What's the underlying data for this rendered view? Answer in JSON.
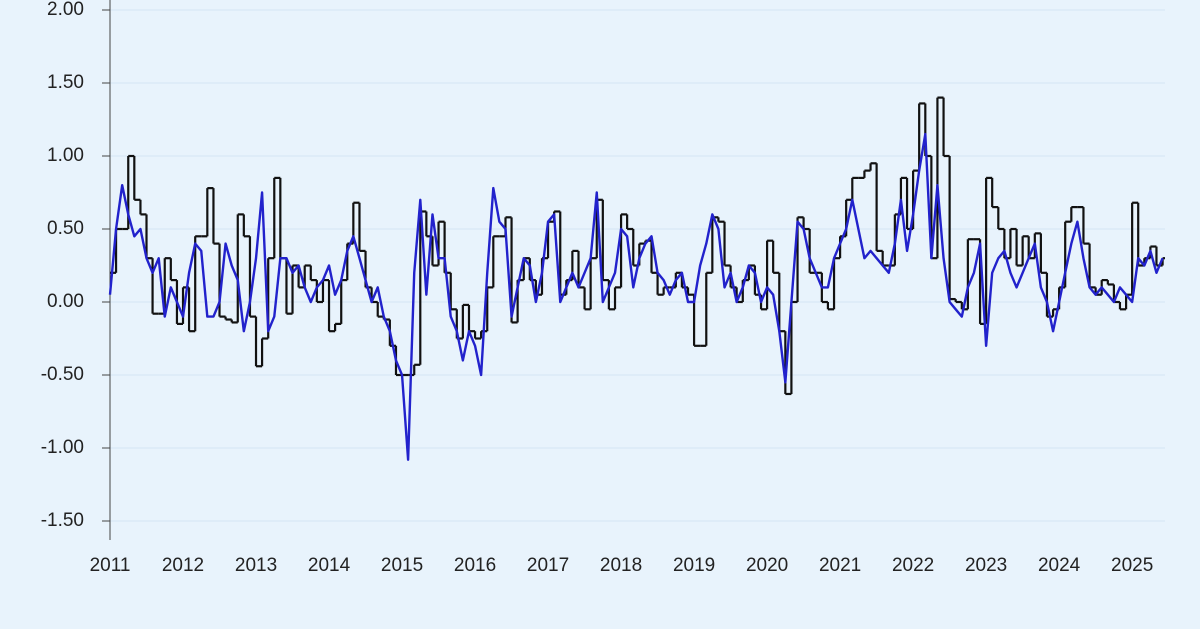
{
  "chart_data": {
    "type": "line",
    "x": [
      2011,
      2011.083,
      2011.167,
      2011.25,
      2011.333,
      2011.417,
      2011.5,
      2011.583,
      2011.667,
      2011.75,
      2011.833,
      2011.917,
      2012,
      2012.083,
      2012.167,
      2012.25,
      2012.333,
      2012.417,
      2012.5,
      2012.583,
      2012.667,
      2012.75,
      2012.833,
      2012.917,
      2013,
      2013.083,
      2013.167,
      2013.25,
      2013.333,
      2013.417,
      2013.5,
      2013.583,
      2013.667,
      2013.75,
      2013.833,
      2013.917,
      2014,
      2014.083,
      2014.167,
      2014.25,
      2014.333,
      2014.417,
      2014.5,
      2014.583,
      2014.667,
      2014.75,
      2014.833,
      2014.917,
      2015,
      2015.083,
      2015.167,
      2015.25,
      2015.333,
      2015.417,
      2015.5,
      2015.583,
      2015.667,
      2015.75,
      2015.833,
      2015.917,
      2016,
      2016.083,
      2016.167,
      2016.25,
      2016.333,
      2016.417,
      2016.5,
      2016.583,
      2016.667,
      2016.75,
      2016.833,
      2016.917,
      2017,
      2017.083,
      2017.167,
      2017.25,
      2017.333,
      2017.417,
      2017.5,
      2017.583,
      2017.667,
      2017.75,
      2017.833,
      2017.917,
      2018,
      2018.083,
      2018.167,
      2018.25,
      2018.333,
      2018.417,
      2018.5,
      2018.583,
      2018.667,
      2018.75,
      2018.833,
      2018.917,
      2019,
      2019.083,
      2019.167,
      2019.25,
      2019.333,
      2019.417,
      2019.5,
      2019.583,
      2019.667,
      2019.75,
      2019.833,
      2019.917,
      2020,
      2020.083,
      2020.167,
      2020.25,
      2020.333,
      2020.417,
      2020.5,
      2020.583,
      2020.667,
      2020.75,
      2020.833,
      2020.917,
      2021,
      2021.083,
      2021.167,
      2021.25,
      2021.333,
      2021.417,
      2021.5,
      2021.583,
      2021.667,
      2021.75,
      2021.833,
      2021.917,
      2022,
      2022.083,
      2022.167,
      2022.25,
      2022.333,
      2022.417,
      2022.5,
      2022.583,
      2022.667,
      2022.75,
      2022.833,
      2022.917,
      2023,
      2023.083,
      2023.167,
      2023.25,
      2023.333,
      2023.417,
      2023.5,
      2023.583,
      2023.667,
      2023.75,
      2023.833,
      2023.917,
      2024,
      2024.083,
      2024.167,
      2024.25,
      2024.333,
      2024.417,
      2024.5,
      2024.583,
      2024.667,
      2024.75,
      2024.833,
      2024.917,
      2025,
      2025.083,
      2025.167,
      2025.25,
      2025.333,
      2025.417
    ],
    "series": [
      {
        "color": "#111111",
        "step": true,
        "values": [
          0.2,
          0.5,
          0.5,
          1.0,
          0.7,
          0.6,
          0.3,
          -0.08,
          -0.08,
          0.3,
          0.15,
          -0.15,
          0.1,
          -0.2,
          0.45,
          0.45,
          0.78,
          0.4,
          -0.1,
          -0.12,
          -0.14,
          0.6,
          0.45,
          -0.1,
          -0.44,
          -0.25,
          0.3,
          0.85,
          0.3,
          -0.08,
          0.25,
          0.1,
          0.25,
          0.15,
          0.0,
          0.15,
          -0.2,
          -0.15,
          0.15,
          0.4,
          0.68,
          0.35,
          0.1,
          0.0,
          -0.1,
          -0.12,
          -0.3,
          -0.5,
          -0.5,
          -0.5,
          -0.43,
          0.62,
          0.45,
          0.25,
          0.55,
          0.2,
          -0.05,
          -0.25,
          -0.02,
          -0.2,
          -0.25,
          -0.2,
          0.1,
          0.45,
          0.45,
          0.58,
          -0.14,
          0.15,
          0.3,
          0.15,
          0.05,
          0.3,
          0.55,
          0.62,
          0.05,
          0.15,
          0.35,
          0.1,
          -0.05,
          0.3,
          0.7,
          0.15,
          -0.05,
          0.1,
          0.6,
          0.5,
          0.25,
          0.4,
          0.42,
          0.2,
          0.05,
          0.1,
          0.1,
          0.2,
          0.1,
          0.05,
          -0.3,
          -0.3,
          0.2,
          0.58,
          0.55,
          0.25,
          0.1,
          0.0,
          0.15,
          0.25,
          0.05,
          -0.05,
          0.42,
          0.2,
          -0.2,
          -0.63,
          0.0,
          0.58,
          0.5,
          0.2,
          0.2,
          0.0,
          -0.05,
          0.3,
          0.45,
          0.7,
          0.85,
          0.85,
          0.9,
          0.95,
          0.35,
          0.25,
          0.25,
          0.6,
          0.85,
          0.5,
          0.9,
          1.36,
          1.0,
          0.3,
          1.4,
          1.0,
          0.02,
          0.0,
          -0.05,
          0.43,
          0.43,
          -0.15,
          0.85,
          0.65,
          0.5,
          0.3,
          0.5,
          0.25,
          0.45,
          0.3,
          0.47,
          0.2,
          -0.1,
          -0.05,
          0.1,
          0.55,
          0.65,
          0.65,
          0.4,
          0.1,
          0.05,
          0.15,
          0.12,
          0.0,
          -0.05,
          0.05,
          0.68,
          0.25,
          0.3,
          0.38,
          0.25,
          0.3
        ]
      },
      {
        "color": "#2222cc",
        "step": false,
        "values": [
          0.05,
          0.5,
          0.8,
          0.6,
          0.45,
          0.5,
          0.3,
          0.2,
          0.3,
          -0.1,
          0.1,
          0.0,
          -0.1,
          0.2,
          0.4,
          0.35,
          -0.1,
          -0.1,
          0.0,
          0.4,
          0.25,
          0.15,
          -0.2,
          0.0,
          0.3,
          0.75,
          -0.2,
          -0.1,
          0.3,
          0.3,
          0.2,
          0.25,
          0.1,
          0.0,
          0.1,
          0.15,
          0.25,
          0.05,
          0.15,
          0.35,
          0.45,
          0.3,
          0.15,
          0.0,
          0.1,
          -0.1,
          -0.2,
          -0.4,
          -0.5,
          -1.08,
          0.2,
          0.7,
          0.05,
          0.6,
          0.3,
          0.3,
          -0.1,
          -0.2,
          -0.4,
          -0.2,
          -0.3,
          -0.5,
          0.2,
          0.78,
          0.55,
          0.5,
          -0.1,
          0.1,
          0.3,
          0.25,
          0.0,
          0.2,
          0.55,
          0.6,
          0.0,
          0.1,
          0.2,
          0.1,
          0.2,
          0.3,
          0.75,
          0.0,
          0.1,
          0.2,
          0.5,
          0.45,
          0.1,
          0.3,
          0.4,
          0.45,
          0.2,
          0.15,
          0.05,
          0.15,
          0.2,
          0.0,
          0.0,
          0.25,
          0.4,
          0.6,
          0.5,
          0.1,
          0.2,
          0.0,
          0.1,
          0.25,
          0.2,
          0.0,
          0.1,
          0.05,
          -0.2,
          -0.55,
          0.0,
          0.55,
          0.5,
          0.3,
          0.2,
          0.1,
          0.1,
          0.3,
          0.4,
          0.5,
          0.7,
          0.5,
          0.3,
          0.35,
          0.3,
          0.25,
          0.2,
          0.4,
          0.7,
          0.35,
          0.6,
          0.9,
          1.15,
          0.3,
          0.8,
          0.3,
          0.0,
          -0.05,
          -0.1,
          0.1,
          0.2,
          0.4,
          -0.3,
          0.2,
          0.3,
          0.35,
          0.2,
          0.1,
          0.2,
          0.3,
          0.4,
          0.1,
          0.0,
          -0.2,
          0.0,
          0.2,
          0.4,
          0.55,
          0.3,
          0.1,
          0.05,
          0.1,
          0.05,
          0.0,
          0.1,
          0.05,
          0.0,
          0.3,
          0.25,
          0.35,
          0.2,
          0.3
        ]
      }
    ],
    "xlim": [
      2011,
      2025.45
    ],
    "xticks": [
      2011,
      2012,
      2013,
      2014,
      2015,
      2016,
      2017,
      2018,
      2019,
      2020,
      2021,
      2022,
      2023,
      2024,
      2025
    ],
    "ylim": [
      -1.6,
      2.0
    ],
    "yticks": [
      {
        "value": 2,
        "label": "2.00"
      },
      {
        "value": 1.5,
        "label": "1.50"
      },
      {
        "value": 1,
        "label": "1.00"
      },
      {
        "value": 0.5,
        "label": "0.50"
      },
      {
        "value": 0,
        "label": "0.00"
      },
      {
        "value": -0.5,
        "label": "-0.50"
      },
      {
        "value": -1,
        "label": "-1.00"
      },
      {
        "value": -1.5,
        "label": "-1.50"
      }
    ],
    "grid": true
  }
}
